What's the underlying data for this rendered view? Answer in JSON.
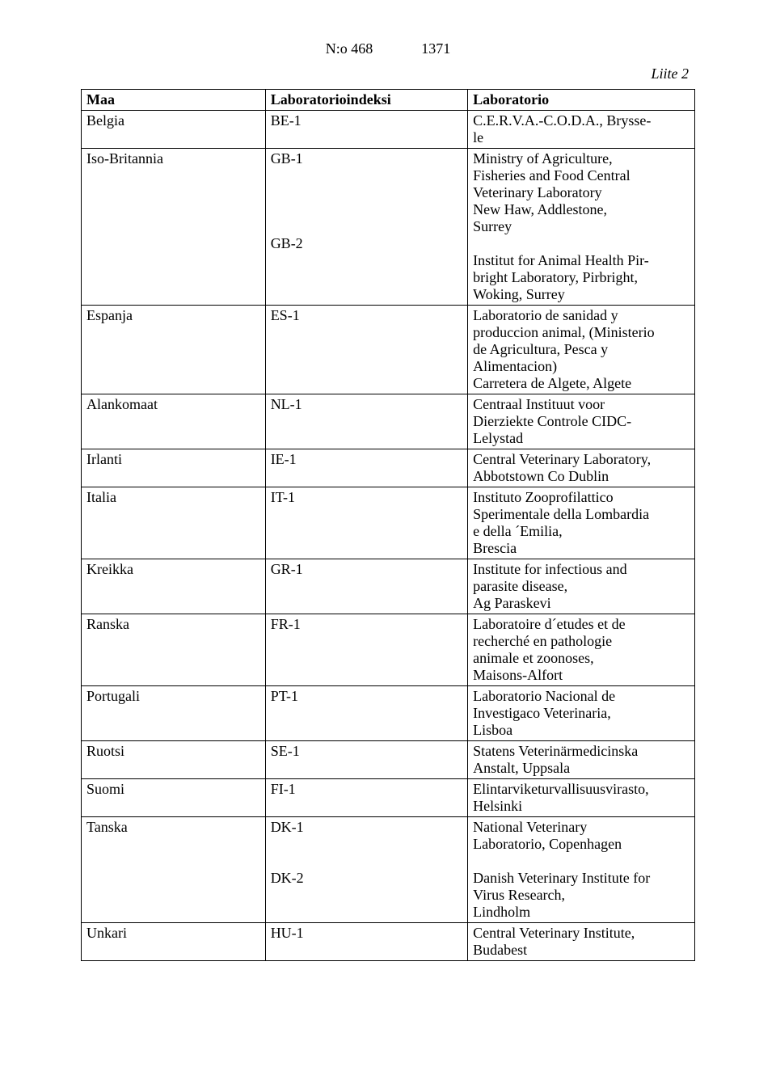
{
  "header": {
    "doc_no": "N:o 468",
    "page_no": "1371",
    "attachment": "Liite 2"
  },
  "table": {
    "columns": [
      "Maa",
      "Laboratorioindeksi",
      "Laboratorio"
    ],
    "rows": [
      {
        "country": "Belgia",
        "index": "BE-1",
        "lab": "C.E.R.V.A.-C.O.D.A., Brysse-\nle"
      },
      {
        "country": "Iso-Britannia",
        "index": "GB-1\n\n\n\n\nGB-2",
        "lab": "Ministry of Agriculture,\nFisheries and Food Central\nVeterinary Laboratory\nNew Haw, Addlestone,\nSurrey\n\nInstitut for Animal Health Pir-\nbright Laboratory, Pirbright,\nWoking, Surrey"
      },
      {
        "country": "Espanja",
        "index": "ES-1",
        "lab": "Laboratorio de sanidad y\nproduccion animal, (Ministerio\nde Agricultura, Pesca y\nAlimentacion)\nCarretera de Algete, Algete"
      },
      {
        "country": "Alankomaat",
        "index": "NL-1",
        "lab": "Centraal Instituut voor\nDierziekte Controle CIDC-\nLelystad"
      },
      {
        "country": "Irlanti",
        "index": "IE-1",
        "lab": "Central Veterinary Laboratory,\nAbbotstown Co Dublin"
      },
      {
        "country": "Italia",
        "index": "IT-1",
        "lab": "Instituto Zooprofilattico\nSperimentale della Lombardia\ne della ´Emilia,\nBrescia"
      },
      {
        "country": "Kreikka",
        "index": "GR-1",
        "lab": "Institute for infectious and\nparasite disease,\nAg Paraskevi"
      },
      {
        "country": "Ranska",
        "index": "FR-1",
        "lab": "Laboratoire d´etudes et de\nrecherché en pathologie\nanimale et zoonoses,\nMaisons-Alfort"
      },
      {
        "country": "Portugali",
        "index": "PT-1",
        "lab": "Laboratorio Nacional de\nInvestigaco Veterinaria,\nLisboa"
      },
      {
        "country": "Ruotsi",
        "index": "SE-1",
        "lab": "Statens Veterinärmedicinska\nAnstalt, Uppsala"
      },
      {
        "country": "Suomi",
        "index": "FI-1",
        "lab": "Elintarviketurvallisuusvirasto,\nHelsinki"
      },
      {
        "country": "Tanska",
        "index": "DK-1\n\n\nDK-2",
        "lab": "National Veterinary\nLaboratorio, Copenhagen\n\nDanish Veterinary Institute for\nVirus Research,\nLindholm"
      },
      {
        "country": "Unkari",
        "index": "HU-1",
        "lab": "Central Veterinary Institute,\nBudabest"
      }
    ]
  }
}
